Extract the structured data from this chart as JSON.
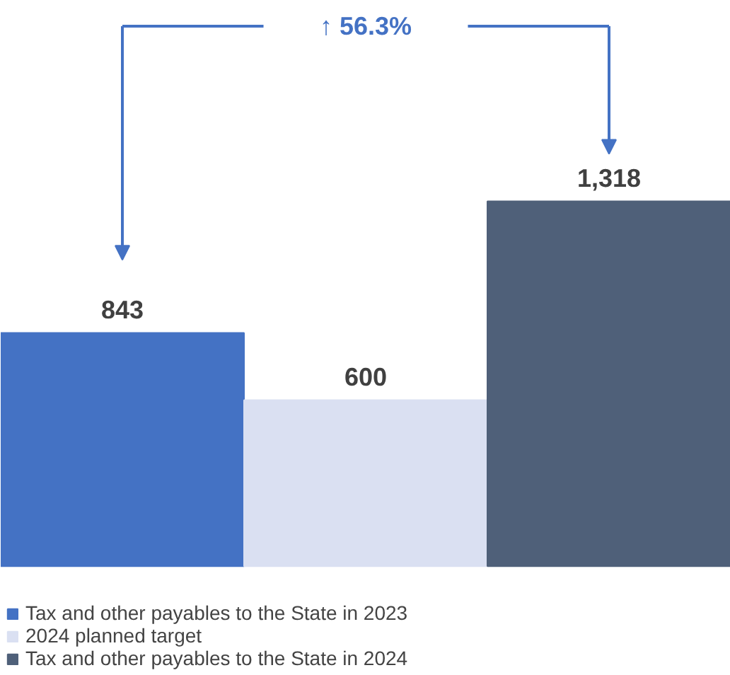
{
  "chart_data": {
    "type": "bar",
    "categories": [
      null
    ],
    "series": [
      {
        "name": "Tax and other payables to the State in 2023",
        "color": "#4472c4",
        "values": [
          843
        ],
        "value_labels": [
          "843"
        ]
      },
      {
        "name": "2024 planned target",
        "color": "#dae0f2",
        "values": [
          600
        ],
        "value_labels": [
          "600"
        ]
      },
      {
        "name": "Tax and other payables to the State in 2024",
        "color": "#4f6079",
        "values": [
          1318
        ],
        "value_labels": [
          "1,318"
        ]
      }
    ],
    "annotations": [
      "↑ 56.3%"
    ],
    "legend": "bottom"
  }
}
